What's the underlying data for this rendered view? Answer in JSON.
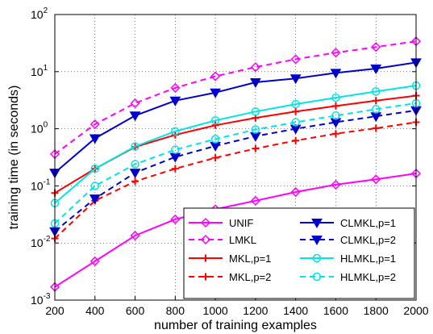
{
  "chart_data": {
    "type": "line",
    "xlabel": "number of training examples",
    "ylabel": "training time (in seconds)",
    "x": [
      200,
      400,
      600,
      800,
      1000,
      1200,
      1400,
      1600,
      1800,
      2000
    ],
    "xlim": [
      200,
      2000
    ],
    "ylim": [
      0.001,
      100
    ],
    "yscale": "log",
    "grid": true,
    "legend": "bottom-right",
    "x_ticks": [
      "200",
      "400",
      "600",
      "800",
      "1000",
      "1200",
      "1400",
      "1600",
      "1800",
      "2000"
    ],
    "y_ticks": [
      {
        "base": "10",
        "exp": "-3"
      },
      {
        "base": "10",
        "exp": "-2"
      },
      {
        "base": "10",
        "exp": "-1"
      },
      {
        "base": "10",
        "exp": "0"
      },
      {
        "base": "10",
        "exp": "1"
      },
      {
        "base": "10",
        "exp": "2"
      }
    ],
    "series": [
      {
        "name": "UNIF",
        "color": "#ff00ff",
        "dash": "solid",
        "marker": "diamond",
        "values": [
          0.0017,
          0.0048,
          0.0135,
          0.026,
          0.039,
          0.055,
          0.078,
          0.105,
          0.13,
          0.165
        ]
      },
      {
        "name": "LMKL",
        "color": "#ff00ff",
        "dash": "dashed",
        "marker": "diamond",
        "values": [
          0.36,
          1.2,
          2.8,
          5.2,
          8.3,
          12.0,
          16.5,
          21.5,
          27.0,
          34.0
        ]
      },
      {
        "name": "MKL,p=1",
        "color": "#ff0000",
        "dash": "solid",
        "marker": "plus",
        "values": [
          0.075,
          0.2,
          0.48,
          0.78,
          1.15,
          1.55,
          2.0,
          2.5,
          3.1,
          3.8
        ]
      },
      {
        "name": "MKL,p=2",
        "color": "#ff0000",
        "dash": "dashed",
        "marker": "plus",
        "values": [
          0.012,
          0.055,
          0.12,
          0.2,
          0.31,
          0.45,
          0.62,
          0.82,
          1.02,
          1.3
        ]
      },
      {
        "name": "CLMKL,p=1",
        "color": "#0000cc",
        "dash": "solid",
        "marker": "triangle-down",
        "values": [
          0.17,
          0.68,
          1.7,
          3.1,
          4.3,
          6.5,
          7.6,
          9.5,
          11.3,
          14.5
        ]
      },
      {
        "name": "CLMKL,p=2",
        "color": "#0000cc",
        "dash": "dashed",
        "marker": "triangle-down",
        "values": [
          0.016,
          0.06,
          0.17,
          0.32,
          0.5,
          0.74,
          1.0,
          1.3,
          1.65,
          2.1
        ]
      },
      {
        "name": "HLMKL,p=1",
        "color": "#00e5e5",
        "dash": "solid",
        "marker": "circle",
        "values": [
          0.05,
          0.2,
          0.49,
          0.9,
          1.4,
          2.0,
          2.7,
          3.5,
          4.5,
          5.7
        ]
      },
      {
        "name": "HLMKL,p=2",
        "color": "#00e5e5",
        "dash": "dashed",
        "marker": "circle",
        "values": [
          0.022,
          0.1,
          0.24,
          0.43,
          0.66,
          0.97,
          1.3,
          1.7,
          2.2,
          2.8
        ]
      }
    ]
  }
}
